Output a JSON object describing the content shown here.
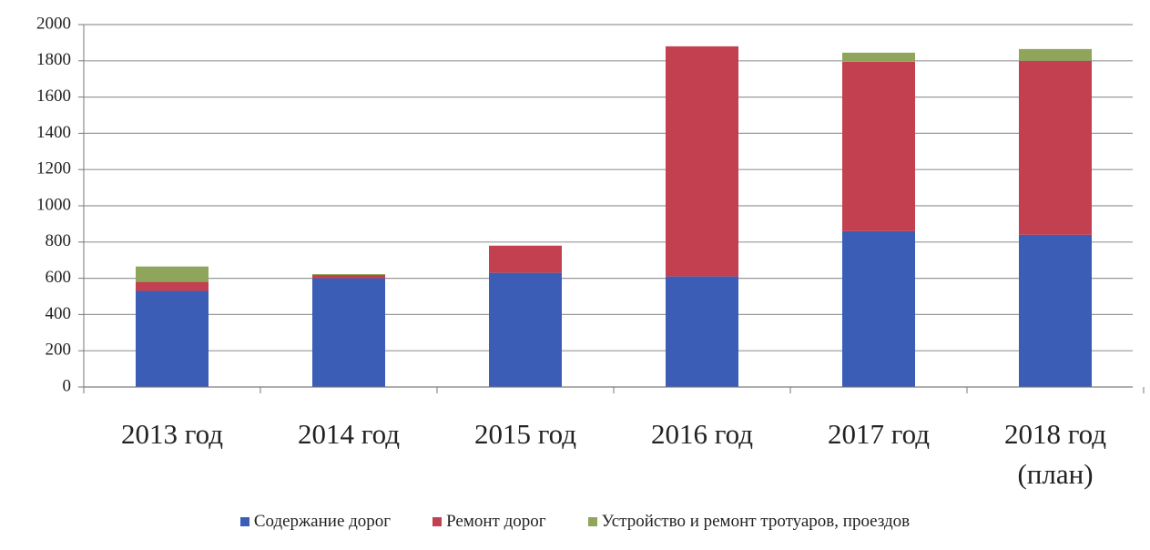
{
  "chart_data": {
    "type": "stacked_bar",
    "categories": [
      "2013 год",
      "2014 год",
      "2015 год",
      "2016 год",
      "2017 год",
      "2018 год (план)"
    ],
    "series": [
      {
        "name": "Содержание дорог",
        "color": "#3b5db6",
        "values": [
          530,
          600,
          630,
          610,
          860,
          840
        ]
      },
      {
        "name": "Ремонт дорог",
        "color": "#c2404f",
        "values": [
          50,
          18,
          150,
          1270,
          935,
          960
        ]
      },
      {
        "name": "Устройство и ремонт тротуаров, проездов",
        "color": "#8ea55b",
        "values": [
          85,
          5,
          0,
          0,
          50,
          65
        ]
      }
    ],
    "ylim": [
      0,
      2000
    ],
    "yticks": [
      0,
      200,
      400,
      600,
      800,
      1000,
      1200,
      1400,
      1600,
      1800,
      2000
    ],
    "grid": true
  }
}
